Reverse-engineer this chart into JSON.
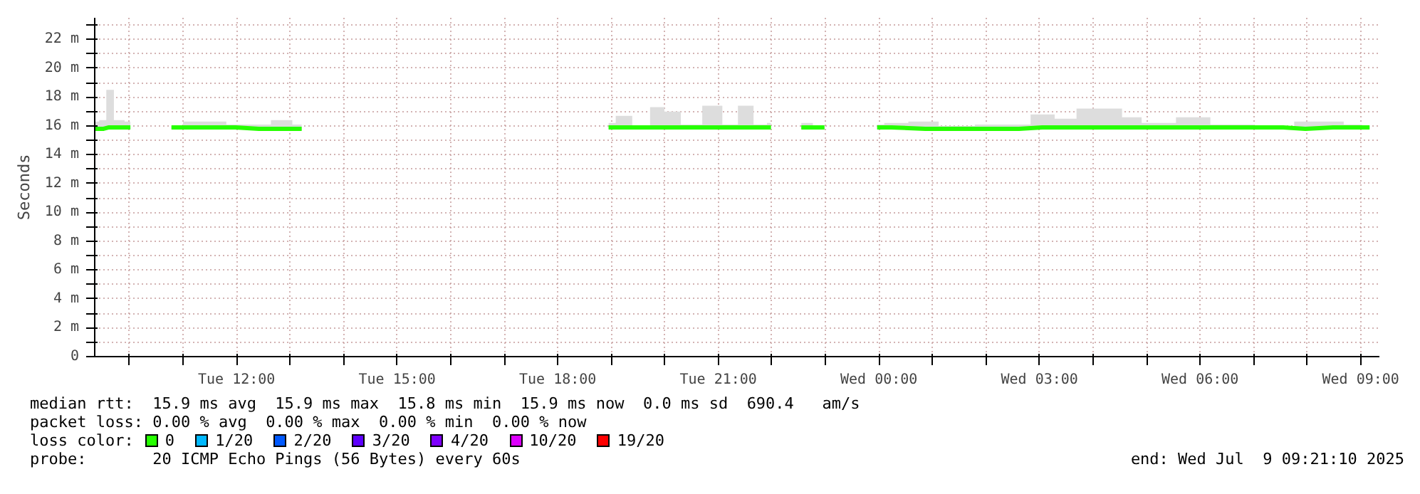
{
  "chart_data": {
    "type": "line",
    "ylabel": "Seconds",
    "xlim": [
      "2025-07-08T09:21",
      "2025-07-09T09:21"
    ],
    "xticks": [
      {
        "value": "2025-07-08T10:00",
        "label": null
      },
      {
        "value": "2025-07-08T11:00",
        "label": null
      },
      {
        "value": "2025-07-08T12:00",
        "label": "Tue 12:00"
      },
      {
        "value": "2025-07-08T13:00",
        "label": null
      },
      {
        "value": "2025-07-08T14:00",
        "label": null
      },
      {
        "value": "2025-07-08T15:00",
        "label": "Tue 15:00"
      },
      {
        "value": "2025-07-08T16:00",
        "label": null
      },
      {
        "value": "2025-07-08T17:00",
        "label": null
      },
      {
        "value": "2025-07-08T18:00",
        "label": "Tue 18:00"
      },
      {
        "value": "2025-07-08T19:00",
        "label": null
      },
      {
        "value": "2025-07-08T20:00",
        "label": null
      },
      {
        "value": "2025-07-08T21:00",
        "label": "Tue 21:00"
      },
      {
        "value": "2025-07-08T22:00",
        "label": null
      },
      {
        "value": "2025-07-08T23:00",
        "label": null
      },
      {
        "value": "2025-07-09T00:00",
        "label": "Wed 00:00"
      },
      {
        "value": "2025-07-09T01:00",
        "label": null
      },
      {
        "value": "2025-07-09T02:00",
        "label": null
      },
      {
        "value": "2025-07-09T03:00",
        "label": "Wed 03:00"
      },
      {
        "value": "2025-07-09T04:00",
        "label": null
      },
      {
        "value": "2025-07-09T05:00",
        "label": null
      },
      {
        "value": "2025-07-09T06:00",
        "label": "Wed 06:00"
      },
      {
        "value": "2025-07-09T07:00",
        "label": null
      },
      {
        "value": "2025-07-09T08:00",
        "label": null
      },
      {
        "value": "2025-07-09T09:00",
        "label": "Wed 09:00"
      }
    ],
    "ylim": [
      0,
      23.5
    ],
    "yticks": [
      0,
      {
        "value": 1,
        "label": null
      },
      {
        "value": 2,
        "label": "2 m"
      },
      {
        "value": 3,
        "label": null
      },
      {
        "value": 4,
        "label": "4 m"
      },
      {
        "value": 5,
        "label": null
      },
      {
        "value": 6,
        "label": "6 m"
      },
      {
        "value": 7,
        "label": null
      },
      {
        "value": 8,
        "label": "8 m"
      },
      {
        "value": 9,
        "label": null
      },
      {
        "value": 10,
        "label": "10 m"
      },
      {
        "value": 11,
        "label": null
      },
      {
        "value": 12,
        "label": "12 m"
      },
      {
        "value": 13,
        "label": null
      },
      {
        "value": 14,
        "label": "14 m"
      },
      {
        "value": 15,
        "label": null
      },
      {
        "value": 16,
        "label": "16 m"
      },
      {
        "value": 17,
        "label": null
      },
      {
        "value": 18,
        "label": "18 m"
      },
      {
        "value": 19,
        "label": null
      },
      {
        "value": 20,
        "label": "20 m"
      },
      {
        "value": 21,
        "label": null
      },
      {
        "value": 22,
        "label": "22 m"
      },
      {
        "value": 23,
        "label": null
      }
    ],
    "grid": true,
    "legend": "bottom",
    "legend_title": "loss color:",
    "series": [
      {
        "name": "0",
        "color": "#26ff00",
        "x": [
          "2025-07-08T09:21",
          "2025-07-08T09:31",
          "2025-07-08T09:37",
          "2025-07-08T09:48",
          "2025-07-08T10:01",
          "2025-07-08T10:20",
          "2025-07-08T10:47",
          "2025-07-08T11:13",
          "2025-07-08T11:38",
          "2025-07-08T11:59",
          "2025-07-08T12:25",
          "2025-07-08T12:52",
          "2025-07-08T13:13",
          "2025-07-08T15:00",
          "2025-07-08T18:57",
          "2025-07-08T19:13",
          "2025-07-08T19:34",
          "2025-07-08T19:53",
          "2025-07-08T20:06",
          "2025-07-08T20:30",
          "2025-07-08T20:54",
          "2025-07-08T21:15",
          "2025-07-08T21:29",
          "2025-07-08T21:50",
          "2025-07-08T21:59",
          "2025-07-08T22:15",
          "2025-07-08T22:33",
          "2025-07-08T22:59",
          "2025-07-08T23:30",
          "2025-07-08T23:58",
          "2025-07-09T00:14",
          "2025-07-09T00:52",
          "2025-07-09T01:22",
          "2025-07-09T02:13",
          "2025-07-09T02:37",
          "2025-07-09T03:03",
          "2025-07-09T03:31",
          "2025-07-09T03:52",
          "2025-07-09T04:28",
          "2025-07-09T04:37",
          "2025-07-09T05:12",
          "2025-07-09T05:54",
          "2025-07-09T06:29",
          "2025-07-09T07:33",
          "2025-07-09T07:58",
          "2025-07-09T08:29",
          "2025-07-09T08:53",
          "2025-07-09T09:10"
        ],
        "values": [
          15.8,
          15.8,
          15.9,
          15.9,
          15.9,
          null,
          15.9,
          15.9,
          15.9,
          15.9,
          15.8,
          15.8,
          15.8,
          null,
          15.9,
          15.9,
          15.9,
          15.9,
          15.9,
          15.9,
          15.9,
          15.9,
          15.9,
          15.9,
          15.9,
          null,
          15.9,
          15.9,
          null,
          15.9,
          15.9,
          15.8,
          15.8,
          15.8,
          15.8,
          15.9,
          15.9,
          15.9,
          15.9,
          15.9,
          15.9,
          15.9,
          15.9,
          15.9,
          15.8,
          15.9,
          15.9,
          15.9
        ],
        "lower": [
          15.7,
          15.7,
          15.8,
          15.8,
          15.8,
          null,
          15.8,
          15.8,
          15.8,
          15.8,
          15.7,
          15.7,
          15.7,
          null,
          15.8,
          15.8,
          15.8,
          15.8,
          15.8,
          15.8,
          15.8,
          15.8,
          15.8,
          15.8,
          15.8,
          null,
          15.8,
          15.8,
          null,
          15.8,
          15.8,
          15.7,
          15.7,
          15.7,
          15.7,
          15.8,
          15.8,
          15.8,
          15.8,
          15.8,
          15.8,
          15.8,
          15.8,
          15.8,
          15.7,
          15.8,
          15.8,
          15.8
        ],
        "upper": [
          16.3,
          16.4,
          18.5,
          16.4,
          16.3,
          null,
          16.0,
          16.3,
          16.3,
          16.1,
          16.1,
          16.4,
          16.1,
          null,
          16.2,
          16.7,
          16.0,
          17.3,
          17.0,
          16.1,
          17.4,
          16.1,
          17.4,
          16.1,
          16.2,
          null,
          16.2,
          16.0,
          null,
          16.1,
          16.2,
          16.3,
          16.0,
          16.1,
          16.1,
          16.8,
          16.5,
          17.2,
          17.2,
          16.6,
          16.2,
          16.6,
          16.1,
          16.0,
          16.3,
          16.3,
          16.1,
          16.0
        ]
      },
      {
        "name": "1/20",
        "color": "#00b8ff"
      },
      {
        "name": "2/20",
        "color": "#0059ff"
      },
      {
        "name": "3/20",
        "color": "#5e00ff"
      },
      {
        "name": "4/20",
        "color": "#7e00ff"
      },
      {
        "name": "10/20",
        "color": "#dd00ff"
      },
      {
        "name": "19/20",
        "color": "#ff0000"
      }
    ],
    "annotations": [
      "median rtt:  15.9 ms avg  15.9 ms max  15.8 ms min  15.9 ms now  0.0 ms sd  690.4   am/s",
      "packet loss: 0.00 % avg  0.00 % max  0.00 % min  0.00 % now",
      "probe:       20 ICMP Echo Pings (56 Bytes) every 60s",
      "end: Wed Jul  9 09:21:10 2025"
    ]
  }
}
